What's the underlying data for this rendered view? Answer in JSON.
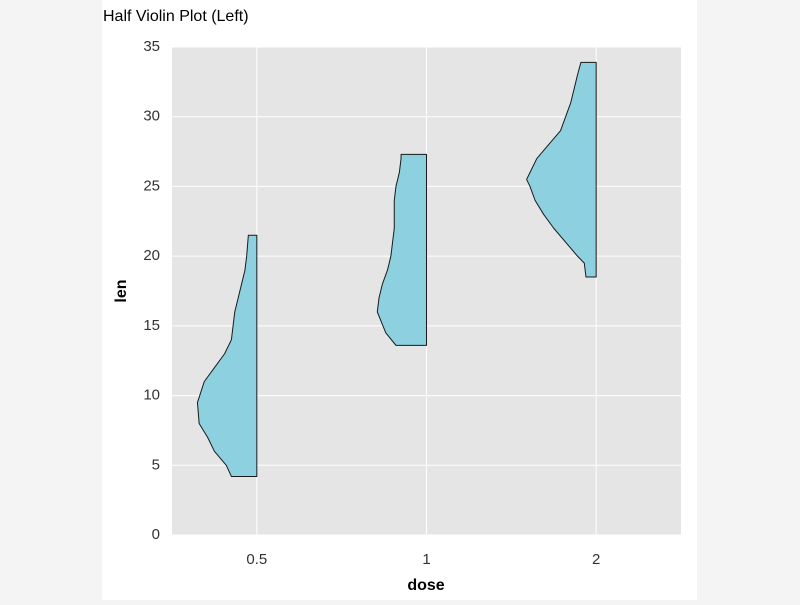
{
  "chart_data": {
    "type": "half-violin",
    "title": "Half Violin Plot (Left)",
    "x_label": "dose",
    "y_label": "len",
    "categories": [
      "0.5",
      "1",
      "2"
    ],
    "color": "#8dd0e0",
    "outline": "#1a1a1a",
    "ylim": [
      0,
      35
    ],
    "yticks": [
      0,
      5,
      10,
      15,
      20,
      25,
      30,
      35
    ],
    "grid": true,
    "series": [
      {
        "y": [
          4.2,
          5,
          6,
          7,
          8,
          9.5,
          11,
          12,
          13,
          14,
          15,
          16,
          17,
          18,
          19,
          20,
          21.5
        ],
        "widths": [
          0.15,
          0.18,
          0.25,
          0.29,
          0.34,
          0.35,
          0.31,
          0.25,
          0.19,
          0.15,
          0.14,
          0.13,
          0.11,
          0.09,
          0.07,
          0.06,
          0.05
        ]
      },
      {
        "y": [
          13.6,
          14.5,
          16,
          17,
          18,
          19,
          20,
          21,
          22,
          23,
          24,
          25,
          26,
          27,
          27.3
        ],
        "widths": [
          0.18,
          0.24,
          0.29,
          0.28,
          0.26,
          0.23,
          0.21,
          0.2,
          0.19,
          0.19,
          0.19,
          0.18,
          0.16,
          0.15,
          0.15
        ]
      },
      {
        "y": [
          18.5,
          19.5,
          20,
          21,
          22,
          23,
          24,
          25,
          25.5,
          26,
          27,
          28,
          29,
          30,
          31,
          32,
          33,
          33.9
        ],
        "widths": [
          0.06,
          0.07,
          0.11,
          0.18,
          0.25,
          0.31,
          0.36,
          0.39,
          0.41,
          0.39,
          0.35,
          0.28,
          0.21,
          0.18,
          0.15,
          0.13,
          0.11,
          0.09
        ]
      }
    ]
  }
}
